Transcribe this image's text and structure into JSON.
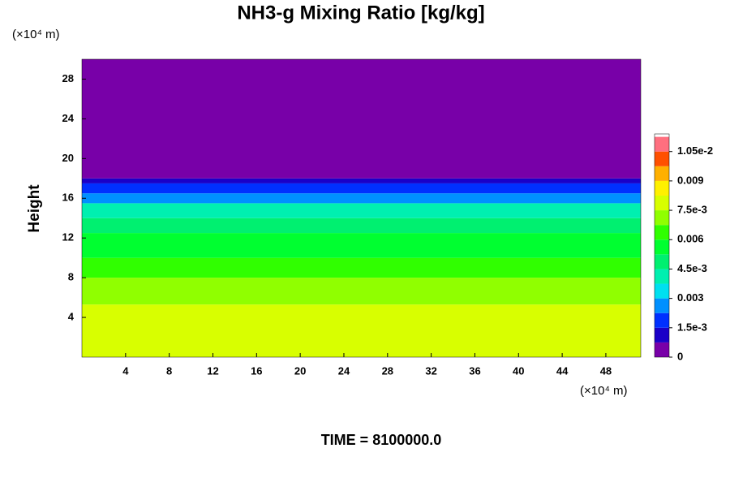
{
  "chart_data": {
    "type": "contour",
    "title": "NH3-g Mixing Ratio [kg/kg]",
    "y_label": "Height",
    "y_unit": "(×10⁴ m)",
    "x_unit": "(×10⁴ m)",
    "footer": "TIME = 8100000.0",
    "xlim": [
      0,
      51.2
    ],
    "xticks": [
      4,
      8,
      12,
      16,
      20,
      24,
      28,
      32,
      36,
      40,
      44,
      48
    ],
    "ylim": [
      0,
      30
    ],
    "yticks": [
      4,
      8,
      12,
      16,
      20,
      24,
      28
    ],
    "y_edges": [
      0,
      5.3,
      8,
      10,
      12.5,
      14,
      15.5,
      16.5,
      17.5,
      18,
      30
    ],
    "values": [
      0.0078,
      0.0068,
      0.006,
      0.0053,
      0.0045,
      0.0038,
      0.0025,
      0.0015,
      0.0009,
      0.0002
    ],
    "colorbar": {
      "bounds": [
        0,
        0.00075,
        0.0015,
        0.00225,
        0.003,
        0.00375,
        0.0045,
        0.00525,
        0.006,
        0.00675,
        0.0075,
        0.00825,
        0.009,
        0.00975,
        0.0105,
        0.01125
      ],
      "colors": [
        "#7800a8",
        "#1a00c8",
        "#0030ff",
        "#0090ff",
        "#00e0f0",
        "#00f0b0",
        "#00f070",
        "#00ff30",
        "#30ff00",
        "#90ff00",
        "#d8ff00",
        "#fff000",
        "#ffb000",
        "#ff5000",
        "#ff6f7f"
      ],
      "lim": [
        0,
        0.0114
      ],
      "ticks": [
        0,
        {
          "value": 0.0015,
          "label": "1.5e-3"
        },
        0.003,
        {
          "value": 0.0045,
          "label": "4.5e-3"
        },
        0.006,
        {
          "value": 0.0075,
          "label": "7.5e-3"
        },
        0.009,
        {
          "value": 0.0105,
          "label": "1.05e-2"
        }
      ]
    }
  }
}
